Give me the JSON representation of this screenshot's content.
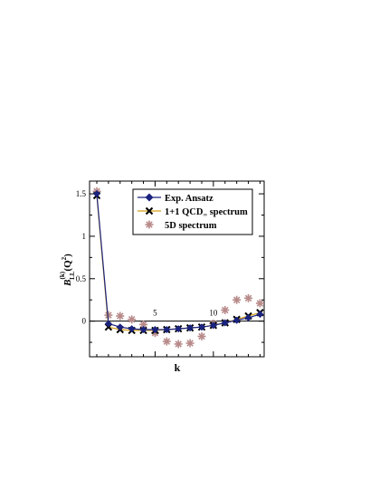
{
  "chart_data": {
    "type": "line",
    "title": "",
    "xlabel": "k",
    "ylabel": "B",
    "ylabel_sup": "(k)",
    "ylabel_sub": "LL",
    "ylabel_args": "(Q",
    "ylabel_args_sup": "2",
    "ylabel_args_close": ")",
    "xlim": [
      0,
      14.2
    ],
    "ylim": [
      -0.42,
      1.65
    ],
    "x_ticks": [
      5,
      10
    ],
    "y_ticks": [
      0,
      0.5,
      1,
      1.5
    ],
    "x_tick_labels": [
      "5",
      "10"
    ],
    "y_tick_labels": [
      "0",
      "0.5",
      "1",
      "1.5"
    ],
    "legend_position": "top-right",
    "series": [
      {
        "name": "Exp. Ansatz",
        "marker": "diamond",
        "line": true,
        "color": "#1a237e",
        "x": [
          0,
          1,
          2,
          3,
          4,
          5,
          6,
          7,
          8,
          9,
          10,
          11,
          12,
          13,
          14
        ],
        "y": [
          1.5,
          -0.03,
          -0.07,
          -0.09,
          -0.1,
          -0.1,
          -0.1,
          -0.09,
          -0.08,
          -0.07,
          -0.05,
          -0.02,
          0.01,
          0.04,
          0.08
        ]
      },
      {
        "name": "1+1 QCD",
        "name_sub": "∞",
        "name_suffix": " spectrum",
        "marker": "x",
        "line": true,
        "color": "#000000",
        "line_color": "#d4a017",
        "x": [
          0,
          1,
          2,
          3,
          4,
          5,
          6,
          7,
          8,
          9,
          10,
          11,
          12,
          13,
          14
        ],
        "y": [
          1.48,
          -0.07,
          -0.1,
          -0.11,
          -0.11,
          -0.11,
          -0.1,
          -0.09,
          -0.08,
          -0.07,
          -0.05,
          -0.02,
          0.02,
          0.06,
          0.1
        ]
      },
      {
        "name": "5D  spectrum",
        "marker": "asterisk",
        "line": false,
        "color": "#b88a8a",
        "x": [
          0,
          1,
          2,
          3,
          4,
          5,
          6,
          7,
          8,
          9,
          10,
          11,
          12,
          13,
          14
        ],
        "y": [
          1.53,
          0.07,
          0.06,
          0.02,
          -0.04,
          -0.14,
          -0.24,
          -0.27,
          -0.26,
          -0.18,
          -0.03,
          0.13,
          0.25,
          0.27,
          0.21
        ]
      }
    ]
  }
}
